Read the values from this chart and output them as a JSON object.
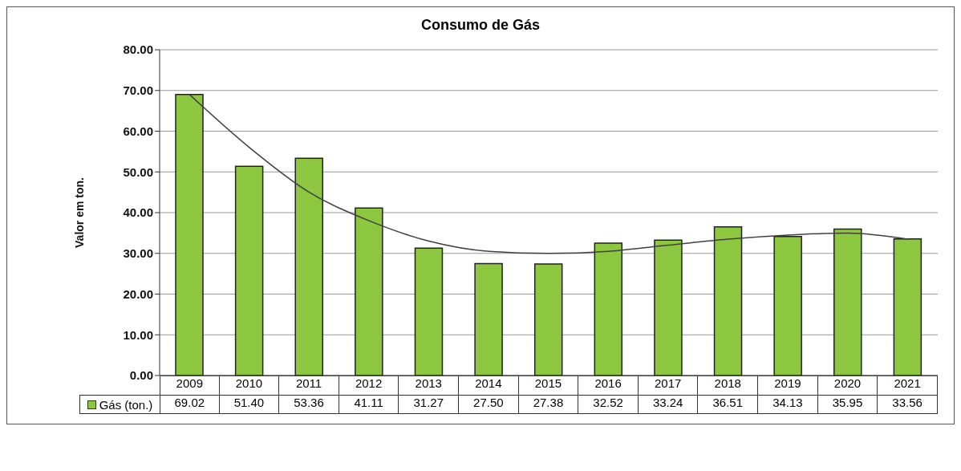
{
  "chart_data": {
    "type": "bar",
    "title": "Consumo de Gás",
    "ylabel": "Valor em ton.",
    "categories": [
      "2009",
      "2010",
      "2011",
      "2012",
      "2013",
      "2014",
      "2015",
      "2016",
      "2017",
      "2018",
      "2019",
      "2020",
      "2021"
    ],
    "series": [
      {
        "name": "Gás (ton.)",
        "color": "#8dc63f",
        "values": [
          69.02,
          51.4,
          53.36,
          41.11,
          31.27,
          27.5,
          27.38,
          32.52,
          33.24,
          36.51,
          34.13,
          35.95,
          33.56
        ],
        "value_labels": [
          "69.02",
          "51.40",
          "53.36",
          "41.11",
          "31.27",
          "27.50",
          "27.38",
          "32.52",
          "33.24",
          "36.51",
          "34.13",
          "35.95",
          "33.56"
        ]
      },
      {
        "type": "line",
        "color": "#404040",
        "values": [
          69,
          56,
          45,
          38,
          33,
          30.5,
          30,
          30.5,
          32,
          33.5,
          34.5,
          35,
          33.5
        ]
      }
    ],
    "ylim": [
      0,
      80
    ],
    "yticks": [
      {
        "value": 0,
        "label": "0.00"
      },
      {
        "value": 10,
        "label": "10.00"
      },
      {
        "value": 20,
        "label": "20.00"
      },
      {
        "value": 30,
        "label": "30.00"
      },
      {
        "value": 40,
        "label": "40.00"
      },
      {
        "value": 50,
        "label": "50.00"
      },
      {
        "value": 60,
        "label": "60.00"
      },
      {
        "value": 70,
        "label": "70.00"
      },
      {
        "value": 80,
        "label": "80.00"
      }
    ],
    "grid": "y",
    "legend": "bottom",
    "marker": "none"
  }
}
